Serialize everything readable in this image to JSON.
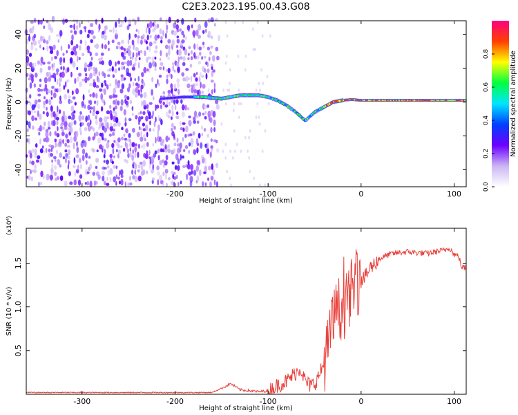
{
  "figure": {
    "title": "C2E3.2023.195.00.43.G08"
  },
  "chart_data": [
    {
      "type": "heatmap",
      "xlabel": "Height of straight line (km)",
      "ylabel": "Frequency (Hz)",
      "xlim": [
        -360,
        113
      ],
      "ylim": [
        -50,
        48
      ],
      "x_ticks": [
        -300,
        -200,
        -100,
        0,
        100
      ],
      "y_ticks": [
        -40,
        -20,
        0,
        20,
        40
      ],
      "colorbar": {
        "label": "Normalized spectral amplitude",
        "range": [
          0,
          1
        ],
        "ticks": [
          0.0,
          0.2,
          0.4,
          0.6,
          0.8
        ],
        "colormap": [
          "#ffffff",
          "#cbb5f3",
          "#6d00ff",
          "#0040ff",
          "#00e5ff",
          "#00ff40",
          "#ffff00",
          "#ff4000",
          "#ff0080"
        ]
      },
      "ridge": {
        "x": [
          -215,
          -190,
          -170,
          -150,
          -130,
          -110,
          -100,
          -90,
          -80,
          -70,
          -60,
          -50,
          -40,
          -30,
          -20,
          -10,
          0,
          20,
          50,
          80,
          113
        ],
        "freq": [
          2,
          3,
          3,
          2,
          4,
          4,
          3,
          1,
          -2,
          -6,
          -11,
          -6,
          -3,
          0,
          1,
          1.5,
          1,
          1,
          1,
          1,
          1
        ]
      },
      "noise_floor_until_km": -160
    },
    {
      "type": "line",
      "xlabel": "Height of straight line (km)",
      "ylabel": "SNR (10 * v/v)",
      "y_multiplier": "(x10⁴)",
      "xlim": [
        -360,
        113
      ],
      "ylim": [
        0,
        1.9
      ],
      "x_ticks": [
        -300,
        -200,
        -100,
        0,
        100
      ],
      "y_ticks": [
        0.5,
        1.0,
        1.5
      ],
      "color": "#e8403a",
      "series": [
        {
          "x": [
            -360,
            -300,
            -200,
            -160,
            -140,
            -130,
            -110,
            -100,
            -90,
            -80,
            -70,
            -65,
            -60,
            -55,
            -50,
            -45,
            -40,
            -35,
            -30,
            -25,
            -20,
            -15,
            -10,
            -5,
            0,
            5,
            10,
            20,
            30,
            40,
            50,
            60,
            70,
            80,
            90,
            95,
            100,
            105,
            108,
            110,
            113
          ],
          "values": [
            0.02,
            0.02,
            0.02,
            0.02,
            0.12,
            0.05,
            0.03,
            0.04,
            0.1,
            0.15,
            0.25,
            0.3,
            0.15,
            0.1,
            0.12,
            0.22,
            0.35,
            0.55,
            0.85,
            1.0,
            0.95,
            1.05,
            1.2,
            1.25,
            1.3,
            1.35,
            1.45,
            1.55,
            1.6,
            1.62,
            1.63,
            1.62,
            1.61,
            1.63,
            1.65,
            1.68,
            1.6,
            1.58,
            1.45,
            1.45,
            1.45
          ]
        }
      ]
    }
  ]
}
